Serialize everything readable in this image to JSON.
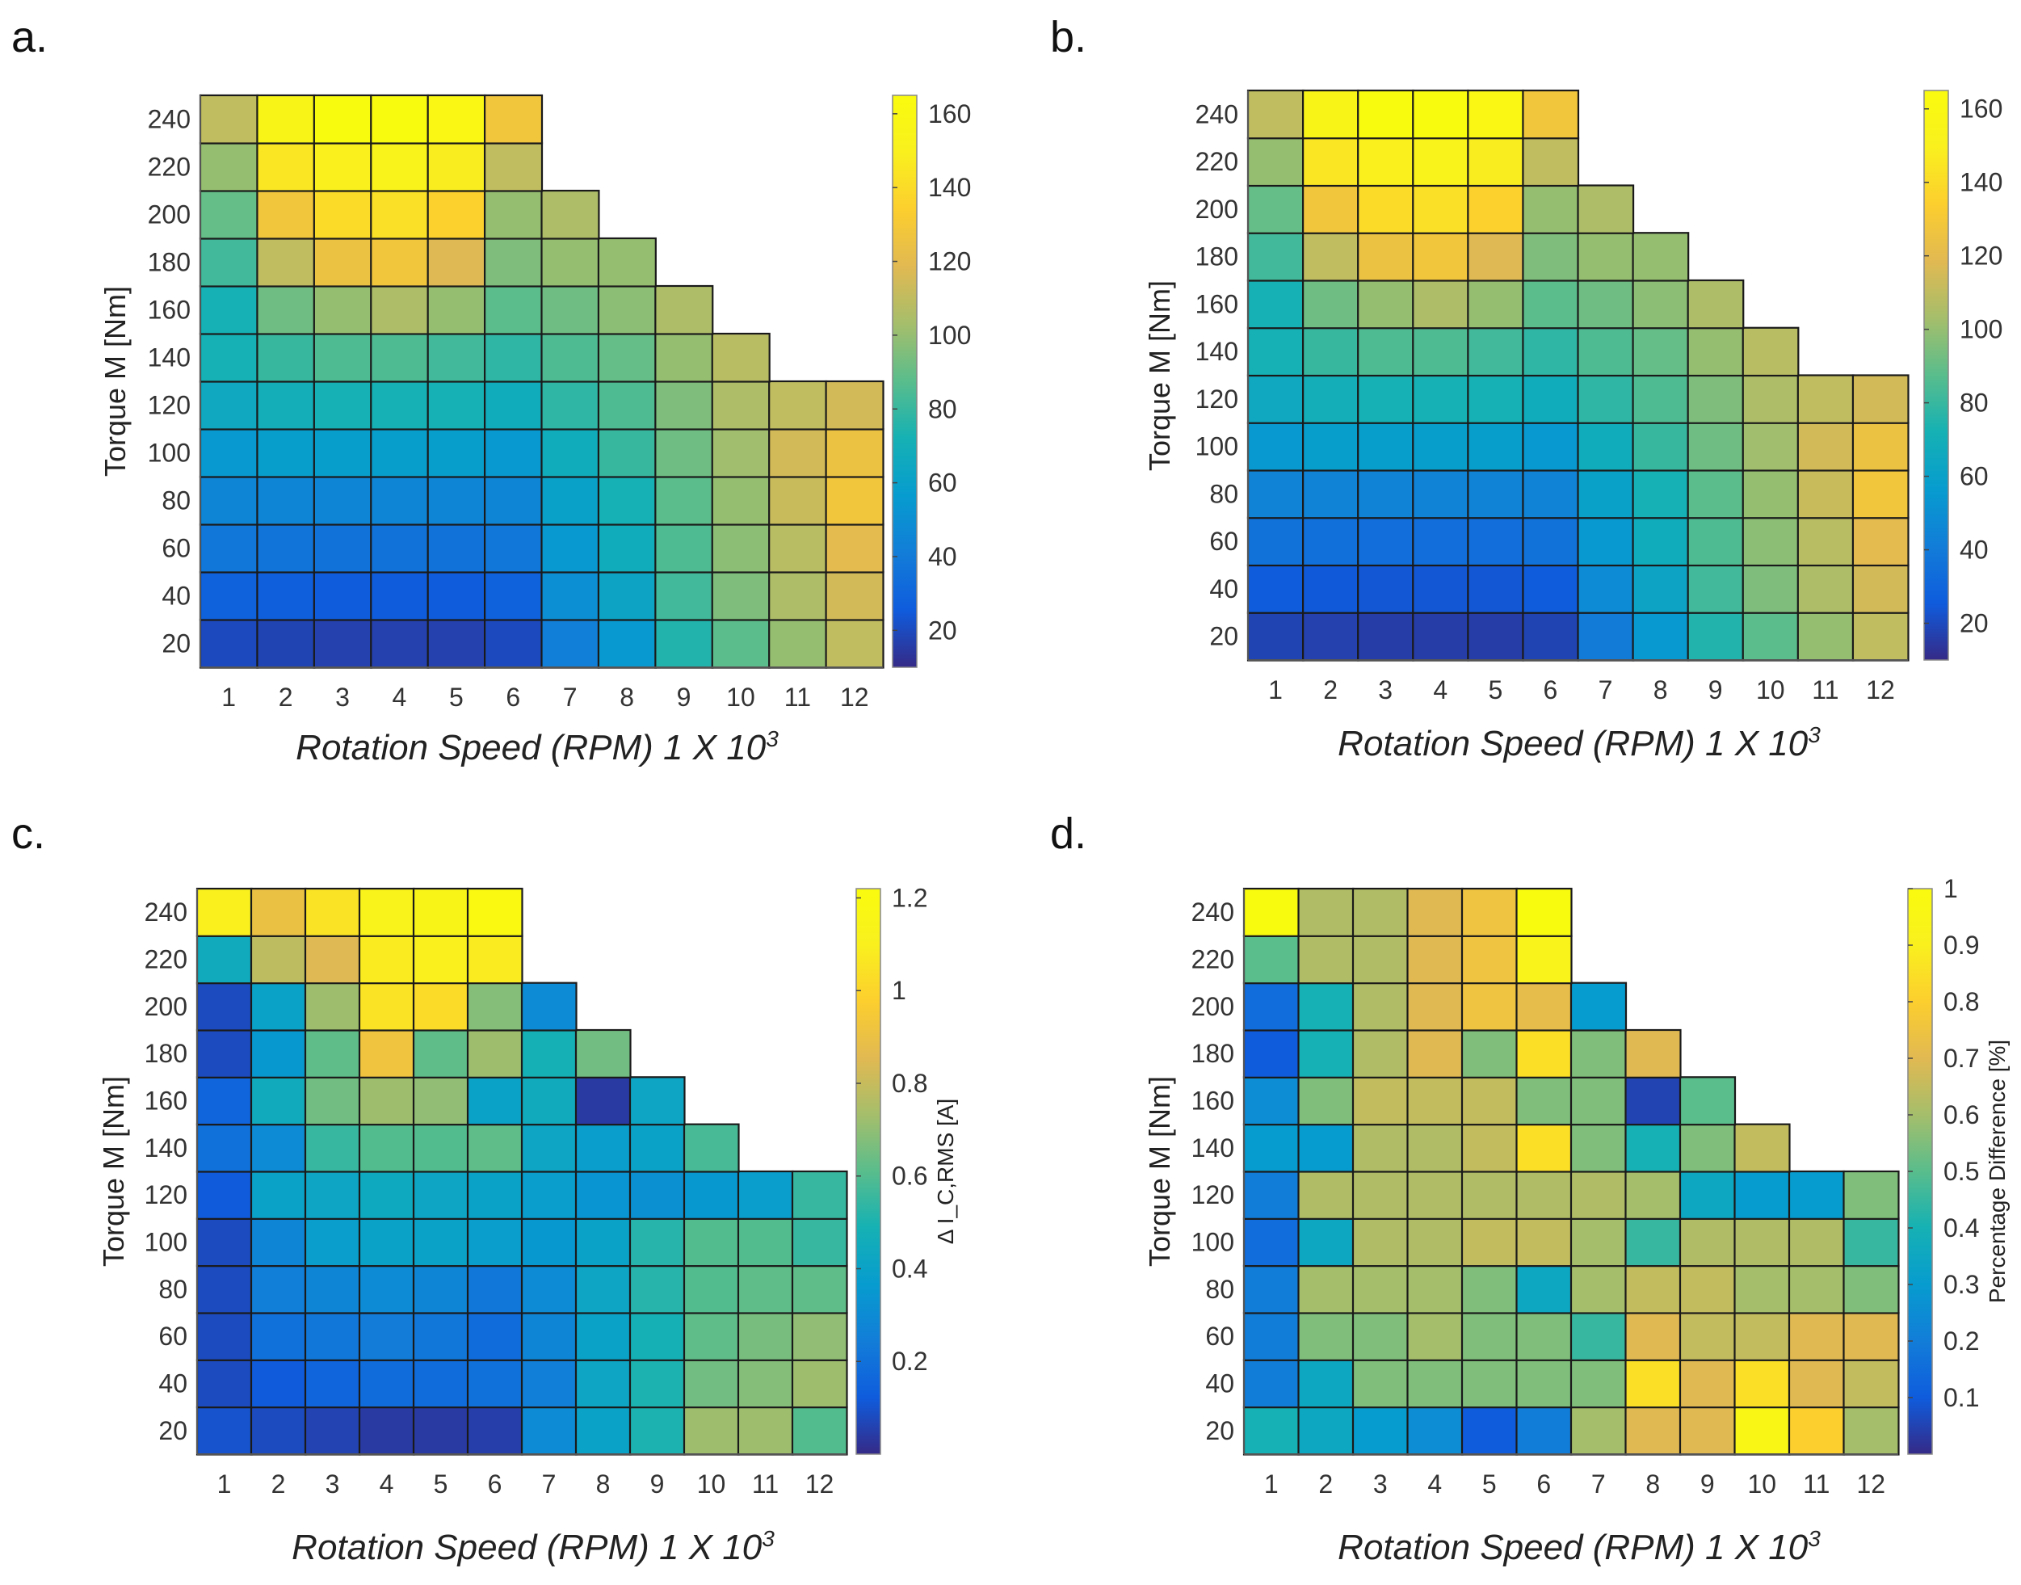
{
  "chart_data": [
    {
      "panel": "a.",
      "type": "heatmap",
      "xlabel": "Rotation Speed (RPM) 1 X 10",
      "xlabel_sup": "3",
      "ylabel": "Torque M [Nm]",
      "x_ticks": [
        "1",
        "2",
        "3",
        "4",
        "5",
        "6",
        "7",
        "8",
        "9",
        "10",
        "11",
        "12"
      ],
      "y_ticks": [
        "20",
        "40",
        "60",
        "80",
        "100",
        "120",
        "140",
        "160",
        "180",
        "200",
        "220",
        "240"
      ],
      "colorbar": {
        "min": 10,
        "max": 165,
        "ticks": [
          "20",
          "40",
          "60",
          "80",
          "100",
          "120",
          "140",
          "160"
        ],
        "label": ""
      },
      "values": [
        [
          20,
          18,
          17,
          17,
          17,
          20,
          42,
          55,
          75,
          88,
          100,
          110
        ],
        [
          28,
          27,
          26,
          26,
          26,
          28,
          50,
          62,
          82,
          95,
          105,
          115
        ],
        [
          38,
          37,
          36,
          36,
          36,
          38,
          55,
          68,
          85,
          98,
          108,
          120
        ],
        [
          45,
          45,
          45,
          45,
          45,
          45,
          60,
          72,
          88,
          100,
          112,
          128
        ],
        [
          55,
          58,
          58,
          58,
          58,
          55,
          68,
          80,
          92,
          102,
          115,
          125
        ],
        [
          65,
          70,
          72,
          72,
          72,
          68,
          78,
          85,
          95,
          105,
          110,
          115
        ],
        [
          72,
          80,
          85,
          85,
          82,
          78,
          85,
          90,
          100,
          108,
          null,
          null
        ],
        [
          72,
          92,
          100,
          105,
          100,
          88,
          92,
          98,
          105,
          null,
          null,
          null
        ],
        [
          82,
          110,
          125,
          128,
          118,
          95,
          100,
          100,
          null,
          null,
          null,
          null
        ],
        [
          90,
          128,
          140,
          142,
          135,
          100,
          105,
          null,
          null,
          null,
          null,
          null
        ],
        [
          100,
          145,
          150,
          152,
          148,
          110,
          null,
          null,
          null,
          null,
          null,
          null
        ],
        [
          110,
          155,
          165,
          165,
          160,
          128,
          null,
          null,
          null,
          null,
          null,
          null
        ]
      ]
    },
    {
      "panel": "b.",
      "type": "heatmap",
      "xlabel": "Rotation Speed (RPM) 1 X 10",
      "xlabel_sup": "3",
      "ylabel": "Torque M [Nm]",
      "x_ticks": [
        "1",
        "2",
        "3",
        "4",
        "5",
        "6",
        "7",
        "8",
        "9",
        "10",
        "11",
        "12"
      ],
      "y_ticks": [
        "20",
        "40",
        "60",
        "80",
        "100",
        "120",
        "140",
        "160",
        "180",
        "200",
        "220",
        "240"
      ],
      "colorbar": {
        "min": 10,
        "max": 165,
        "ticks": [
          "20",
          "40",
          "60",
          "80",
          "100",
          "120",
          "140",
          "160"
        ],
        "label": ""
      },
      "values": [
        [
          18,
          17,
          16,
          16,
          16,
          18,
          40,
          55,
          75,
          88,
          100,
          110
        ],
        [
          26,
          25,
          24,
          24,
          24,
          26,
          48,
          62,
          82,
          95,
          105,
          115
        ],
        [
          36,
          35,
          34,
          34,
          34,
          36,
          55,
          68,
          85,
          98,
          108,
          120
        ],
        [
          44,
          44,
          44,
          44,
          44,
          44,
          60,
          72,
          88,
          100,
          112,
          128
        ],
        [
          55,
          58,
          58,
          58,
          58,
          55,
          68,
          80,
          92,
          102,
          115,
          125
        ],
        [
          65,
          70,
          72,
          72,
          72,
          68,
          78,
          85,
          95,
          105,
          110,
          115
        ],
        [
          72,
          80,
          85,
          85,
          82,
          78,
          85,
          90,
          100,
          108,
          null,
          null
        ],
        [
          72,
          92,
          100,
          105,
          100,
          88,
          92,
          98,
          105,
          null,
          null,
          null
        ],
        [
          82,
          110,
          125,
          128,
          118,
          95,
          100,
          100,
          null,
          null,
          null,
          null
        ],
        [
          90,
          128,
          140,
          142,
          135,
          100,
          105,
          null,
          null,
          null,
          null,
          null
        ],
        [
          100,
          145,
          150,
          152,
          148,
          110,
          null,
          null,
          null,
          null,
          null,
          null
        ],
        [
          110,
          155,
          165,
          165,
          160,
          128,
          null,
          null,
          null,
          null,
          null,
          null
        ]
      ]
    },
    {
      "panel": "c.",
      "type": "heatmap",
      "xlabel": "Rotation Speed (RPM) 1 X 10",
      "xlabel_sup": "3",
      "ylabel": "Torque M [Nm]",
      "x_ticks": [
        "1",
        "2",
        "3",
        "4",
        "5",
        "6",
        "7",
        "8",
        "9",
        "10",
        "11",
        "12"
      ],
      "y_ticks": [
        "20",
        "40",
        "60",
        "80",
        "100",
        "120",
        "140",
        "160",
        "180",
        "200",
        "220",
        "240"
      ],
      "colorbar": {
        "min": 0.0,
        "max": 1.22,
        "ticks": [
          "0.2",
          "0.4",
          "0.6",
          "0.8",
          "1",
          "1.2"
        ],
        "label": "Δ I_C,RMS [A]"
      },
      "values": [
        [
          0.1,
          0.08,
          0.06,
          0.04,
          0.04,
          0.05,
          0.3,
          0.4,
          0.5,
          0.72,
          0.72,
          0.6
        ],
        [
          0.08,
          0.12,
          0.15,
          0.18,
          0.18,
          0.2,
          0.25,
          0.42,
          0.5,
          0.65,
          0.68,
          0.72
        ],
        [
          0.08,
          0.2,
          0.22,
          0.24,
          0.22,
          0.18,
          0.28,
          0.4,
          0.48,
          0.62,
          0.66,
          0.7
        ],
        [
          0.08,
          0.25,
          0.28,
          0.3,
          0.28,
          0.22,
          0.3,
          0.42,
          0.52,
          0.6,
          0.62,
          0.62
        ],
        [
          0.08,
          0.28,
          0.38,
          0.4,
          0.4,
          0.38,
          0.35,
          0.4,
          0.52,
          0.6,
          0.6,
          0.55
        ],
        [
          0.12,
          0.4,
          0.42,
          0.44,
          0.42,
          0.4,
          0.38,
          0.34,
          0.32,
          0.35,
          0.38,
          0.55
        ],
        [
          0.2,
          0.3,
          0.55,
          0.6,
          0.6,
          0.62,
          0.42,
          0.38,
          0.4,
          0.58,
          null,
          null
        ],
        [
          0.15,
          0.45,
          0.65,
          0.72,
          0.7,
          0.4,
          0.45,
          0.04,
          0.42,
          null,
          null,
          null
        ],
        [
          0.08,
          0.35,
          0.62,
          0.92,
          0.62,
          0.72,
          0.48,
          0.65,
          null,
          null,
          null,
          null
        ],
        [
          0.08,
          0.4,
          0.72,
          1.05,
          1.02,
          0.68,
          0.3,
          null,
          null,
          null,
          null,
          null
        ],
        [
          0.45,
          0.78,
          0.85,
          1.08,
          1.1,
          1.08,
          null,
          null,
          null,
          null,
          null,
          null
        ],
        [
          1.1,
          0.9,
          1.05,
          1.12,
          1.14,
          1.2,
          null,
          null,
          null,
          null,
          null,
          null
        ]
      ]
    },
    {
      "panel": "d.",
      "type": "heatmap",
      "xlabel": "Rotation Speed (RPM) 1 X 10",
      "xlabel_sup": "3",
      "ylabel": "Torque M [Nm]",
      "x_ticks": [
        "1",
        "2",
        "3",
        "4",
        "5",
        "6",
        "7",
        "8",
        "9",
        "10",
        "11",
        "12"
      ],
      "y_ticks": [
        "20",
        "40",
        "60",
        "80",
        "100",
        "120",
        "140",
        "160",
        "180",
        "200",
        "220",
        "240"
      ],
      "colorbar": {
        "min": 0.0,
        "max": 1.0,
        "ticks": [
          "0.1",
          "0.2",
          "0.3",
          "0.4",
          "0.5",
          "0.6",
          "0.7",
          "0.8",
          "0.9",
          "1"
        ],
        "label": "Percentage Difference [%]"
      },
      "values": [
        [
          0.4,
          0.35,
          0.3,
          0.25,
          0.1,
          0.2,
          0.6,
          0.7,
          0.7,
          0.95,
          0.8,
          0.6
        ],
        [
          0.2,
          0.35,
          0.55,
          0.55,
          0.55,
          0.55,
          0.55,
          0.85,
          0.7,
          0.85,
          0.7,
          0.65
        ],
        [
          0.2,
          0.55,
          0.55,
          0.6,
          0.55,
          0.55,
          0.45,
          0.7,
          0.65,
          0.65,
          0.7,
          0.7
        ],
        [
          0.2,
          0.6,
          0.6,
          0.6,
          0.55,
          0.35,
          0.6,
          0.65,
          0.65,
          0.6,
          0.6,
          0.55
        ],
        [
          0.15,
          0.35,
          0.62,
          0.62,
          0.65,
          0.65,
          0.6,
          0.45,
          0.62,
          0.62,
          0.62,
          0.45
        ],
        [
          0.2,
          0.62,
          0.62,
          0.62,
          0.62,
          0.62,
          0.62,
          0.6,
          0.35,
          0.3,
          0.3,
          0.55
        ],
        [
          0.3,
          0.3,
          0.62,
          0.62,
          0.65,
          0.85,
          0.55,
          0.4,
          0.55,
          0.65,
          null,
          null
        ],
        [
          0.25,
          0.55,
          0.65,
          0.65,
          0.65,
          0.55,
          0.55,
          0.05,
          0.5,
          null,
          null,
          null
        ],
        [
          0.1,
          0.4,
          0.62,
          0.7,
          0.55,
          0.85,
          0.55,
          0.7,
          null,
          null,
          null,
          null
        ],
        [
          0.15,
          0.4,
          0.62,
          0.7,
          0.75,
          0.72,
          0.3,
          null,
          null,
          null,
          null,
          null
        ],
        [
          0.5,
          0.62,
          0.62,
          0.7,
          0.75,
          0.92,
          null,
          null,
          null,
          null,
          null,
          null
        ],
        [
          1.0,
          0.62,
          0.62,
          0.7,
          0.75,
          1.0,
          null,
          null,
          null,
          null,
          null,
          null
        ]
      ]
    }
  ]
}
